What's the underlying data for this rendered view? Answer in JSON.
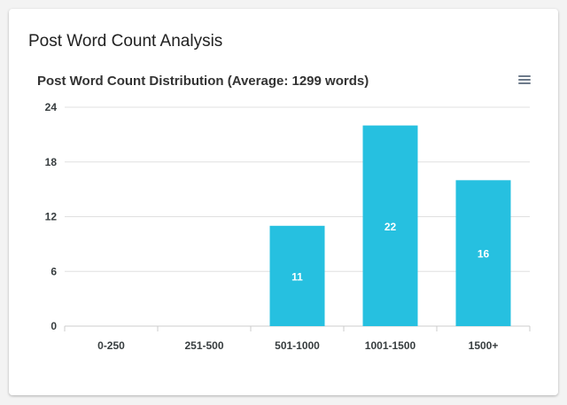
{
  "card": {
    "title": "Post Word Count Analysis"
  },
  "chart_menu": {
    "icon": "menu-icon"
  },
  "colors": {
    "bar": "#26c0e0",
    "grid": "#e0e0e0",
    "axis": "#cccccc"
  },
  "chart_data": {
    "type": "bar",
    "title": "Post Word Count Distribution (Average: 1299 words)",
    "categories": [
      "0-250",
      "251-500",
      "501-1000",
      "1001-1500",
      "1500+"
    ],
    "values": [
      0,
      0,
      11,
      22,
      16
    ],
    "yticks": [
      "0",
      "6",
      "12",
      "18",
      "24"
    ],
    "ylim": [
      0,
      24
    ],
    "xlabel": "",
    "ylabel": "",
    "grid": true,
    "data_labels": true
  }
}
